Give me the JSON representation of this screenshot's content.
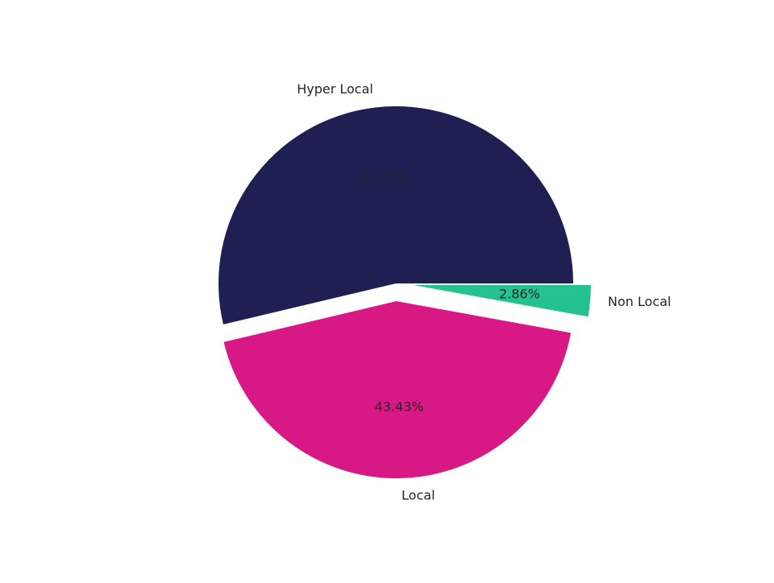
{
  "chart_data": {
    "type": "pie",
    "categories": [
      "Hyper Local",
      "Local",
      "Non Local"
    ],
    "values": [
      53.71,
      43.43,
      2.86
    ],
    "value_labels": [
      "53.71%",
      "43.43%",
      "2.86%"
    ],
    "colors": [
      "#1f1f54",
      "#d81884",
      "#24c28f"
    ],
    "explode": [
      0,
      0.1,
      0.1
    ]
  }
}
